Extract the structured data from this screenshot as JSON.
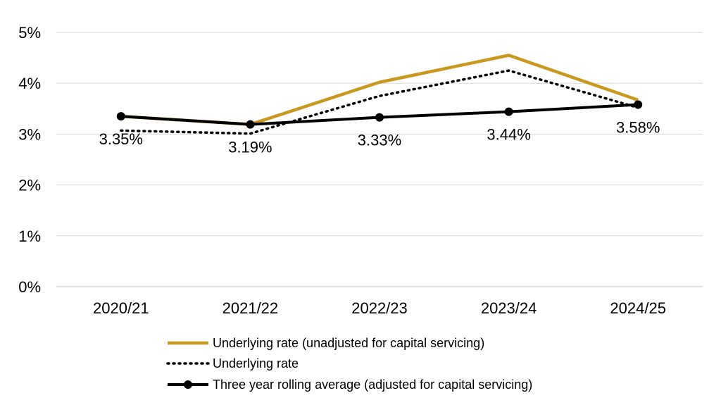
{
  "chart_data": {
    "type": "line",
    "categories": [
      "2020/21",
      "2021/22",
      "2022/23",
      "2023/24",
      "2024/25"
    ],
    "ylim": [
      0,
      5
    ],
    "yticks": [
      "0%",
      "1%",
      "2%",
      "3%",
      "4%",
      "5%"
    ],
    "grid": true,
    "legend_position": "bottom",
    "series": [
      {
        "name": "Underlying rate (unadjusted for capital servicing)",
        "values": [
          3.35,
          3.19,
          4.02,
          4.55,
          3.67
        ],
        "color": "#C9991F",
        "style": "solid"
      },
      {
        "name": "Underlying rate",
        "values": [
          3.07,
          3.01,
          3.75,
          4.25,
          3.52
        ],
        "color": "#000000",
        "style": "dotted"
      },
      {
        "name": "Three year rolling average (adjusted for capital servicing)",
        "values": [
          3.35,
          3.19,
          3.33,
          3.44,
          3.58
        ],
        "color": "#000000",
        "style": "solid-markers"
      }
    ],
    "data_labels": [
      "3.35%",
      "3.19%",
      "3.33%",
      "3.44%",
      "3.58%"
    ]
  }
}
